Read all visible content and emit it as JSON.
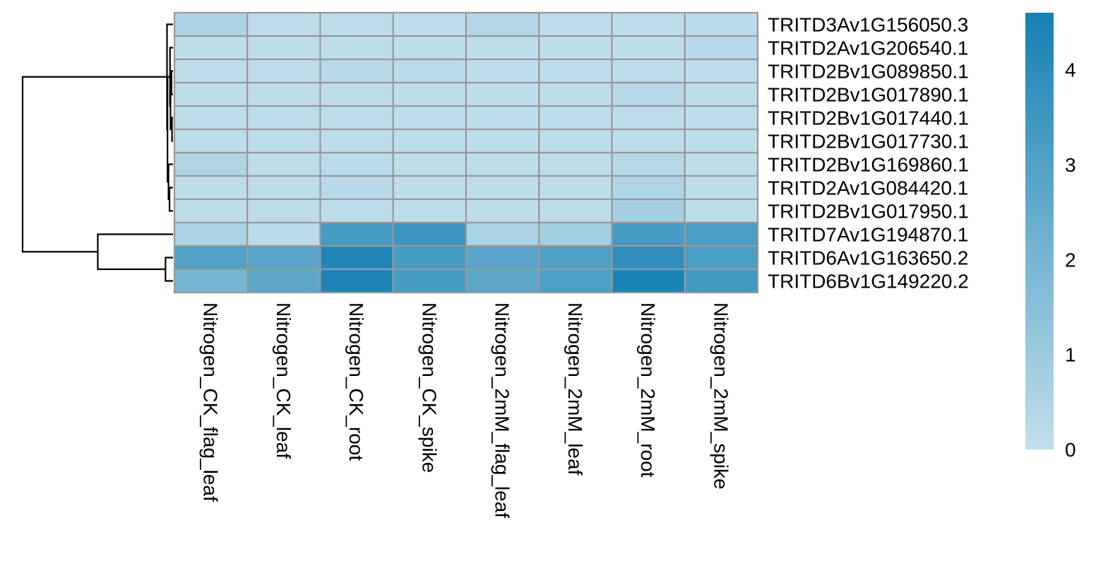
{
  "chart_data": {
    "type": "heatmap",
    "title": "",
    "xlabel": "",
    "ylabel": "",
    "columns": [
      "Nitrogen_CK_flag_leaf",
      "Nitrogen_CK_leaf",
      "Nitrogen_CK_root",
      "Nitrogen_CK_spike",
      "Nitrogen_2mM_flag_leaf",
      "Nitrogen_2mM_leaf",
      "Nitrogen_2mM_root",
      "Nitrogen_2mM_spike"
    ],
    "rows": [
      "TRITD3Av1G156050.3",
      "TRITD2Av1G206540.1",
      "TRITD2Bv1G089850.1",
      "TRITD2Bv1G017890.1",
      "TRITD2Bv1G017440.1",
      "TRITD2Bv1G017730.1",
      "TRITD2Bv1G169860.1",
      "TRITD2Av1G084420.1",
      "TRITD2Bv1G017950.1",
      "TRITD7Av1G194870.1",
      "TRITD6Av1G163650.2",
      "TRITD6Bv1G149220.2"
    ],
    "values": [
      [
        0.6,
        0.1,
        0.1,
        0.1,
        0.4,
        0.1,
        0.1,
        0.2
      ],
      [
        0.1,
        0.1,
        0.1,
        0.1,
        0.1,
        0.1,
        0.1,
        0.3
      ],
      [
        0.1,
        0.1,
        0.3,
        0.2,
        0.1,
        0.1,
        0.1,
        0.1
      ],
      [
        0.1,
        0.1,
        0.1,
        0.1,
        0.1,
        0.1,
        0.3,
        0.1
      ],
      [
        0.1,
        0.1,
        0.1,
        0.1,
        0.1,
        0.1,
        0.1,
        0.1
      ],
      [
        0.1,
        0.1,
        0.1,
        0.1,
        0.1,
        0.1,
        0.1,
        0.1
      ],
      [
        0.5,
        0.1,
        0.2,
        0.1,
        0.1,
        0.1,
        0.3,
        0.1
      ],
      [
        0.1,
        0.1,
        0.3,
        0.1,
        0.1,
        0.1,
        0.5,
        0.1
      ],
      [
        0.1,
        0.1,
        0.1,
        0.1,
        0.1,
        0.1,
        0.8,
        0.1
      ],
      [
        0.6,
        0.2,
        3.3,
        3.6,
        0.6,
        0.8,
        3.3,
        3.2
      ],
      [
        3.0,
        2.8,
        4.3,
        3.3,
        2.8,
        3.1,
        3.9,
        3.2
      ],
      [
        2.0,
        2.7,
        4.4,
        3.3,
        2.7,
        3.1,
        4.5,
        3.4
      ]
    ],
    "colorbar": {
      "ticks": [
        0,
        1,
        2,
        3,
        4
      ],
      "range": [
        0,
        4.6
      ],
      "colors": [
        "#c2dfeb",
        "#1580b3"
      ]
    },
    "row_dendrogram": {
      "merges": [
        [
          -5,
          -6,
          0.02
        ],
        [
          -3,
          -4,
          0.03
        ],
        [
          1,
          2,
          0.05
        ],
        [
          -2,
          3,
          0.06
        ],
        [
          -8,
          -9,
          0.07
        ],
        [
          -7,
          5,
          0.09
        ],
        [
          4,
          6,
          0.11
        ],
        [
          -1,
          7,
          0.12
        ],
        [
          -11,
          -12,
          0.15
        ],
        [
          -10,
          9,
          1.5
        ],
        [
          8,
          10,
          3.0
        ]
      ]
    },
    "border_color": "#999999"
  }
}
